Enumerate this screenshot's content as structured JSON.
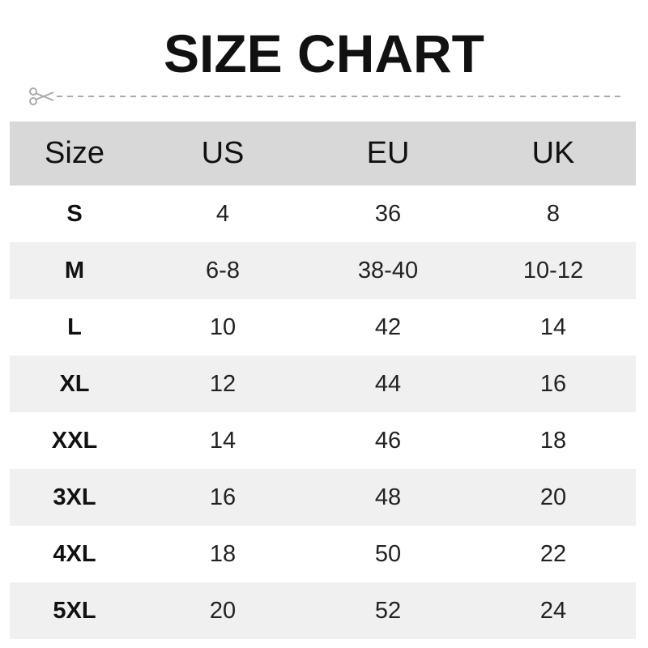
{
  "title": "SIZE CHART",
  "cut_icon": "scissors-icon",
  "colors": {
    "header_bg": "#d8d8d8",
    "alt_row_bg": "#f0f0f0",
    "cutline": "#aaaaaa"
  },
  "table": {
    "headers": [
      "Size",
      "US",
      "EU",
      "UK"
    ],
    "rows": [
      [
        "S",
        "4",
        "36",
        "8"
      ],
      [
        "M",
        "6-8",
        "38-40",
        "10-12"
      ],
      [
        "L",
        "10",
        "42",
        "14"
      ],
      [
        "XL",
        "12",
        "44",
        "16"
      ],
      [
        "XXL",
        "14",
        "46",
        "18"
      ],
      [
        "3XL",
        "16",
        "48",
        "20"
      ],
      [
        "4XL",
        "18",
        "50",
        "22"
      ],
      [
        "5XL",
        "20",
        "52",
        "24"
      ]
    ]
  }
}
